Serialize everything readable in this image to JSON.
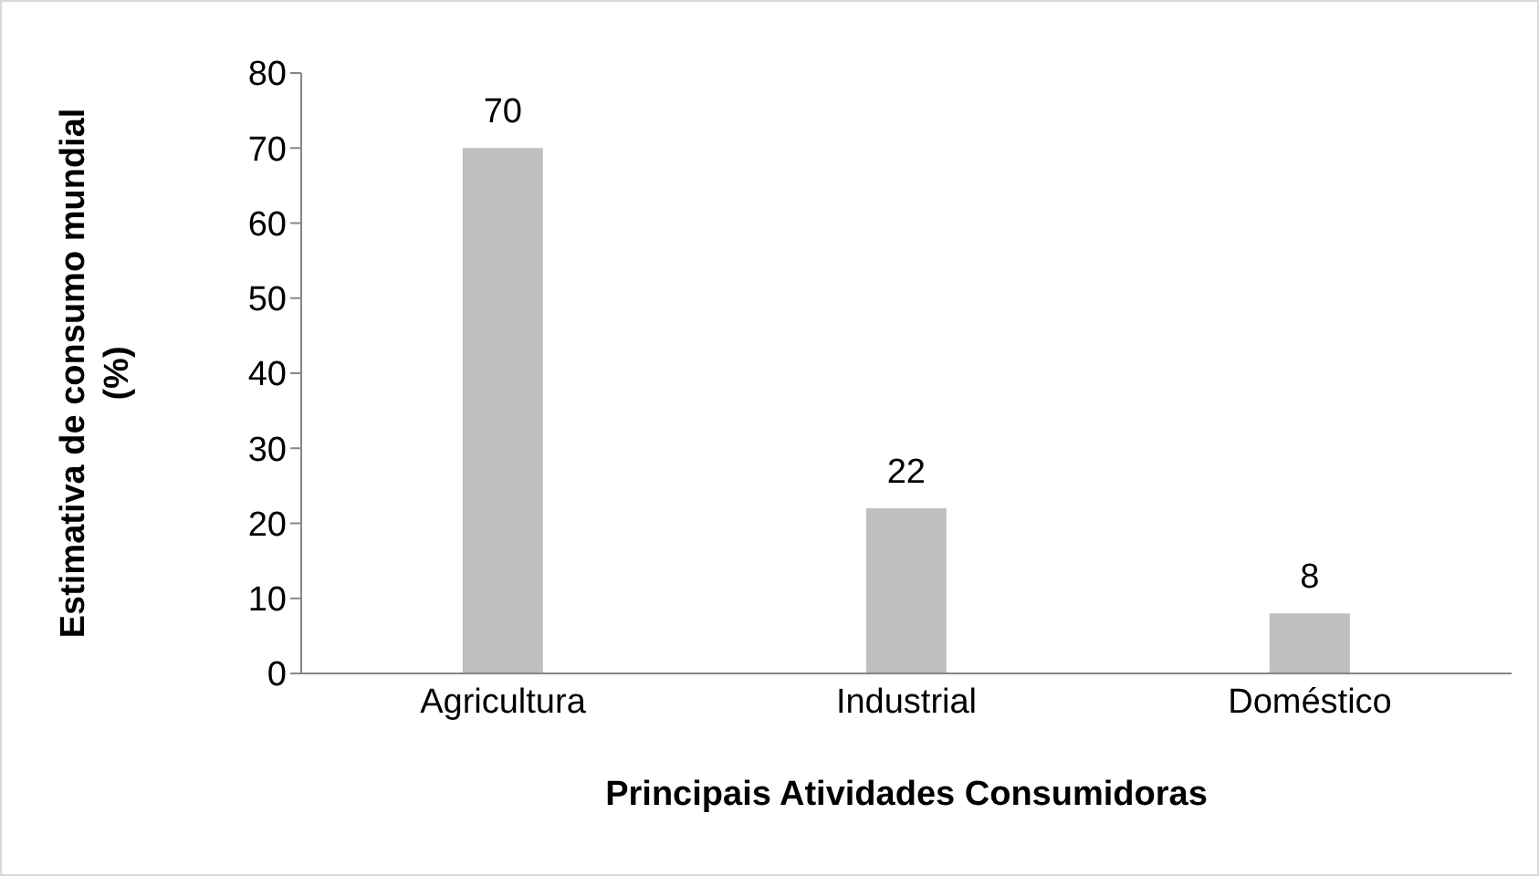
{
  "chart_data": {
    "type": "bar",
    "xlabel": "Principais Atividades Consumidoras",
    "ylabel": "Estimativa de consumo mundial (%)",
    "categories": [
      "Agricultura",
      "Industrial",
      "Doméstico"
    ],
    "values": [
      70,
      22,
      8
    ],
    "color": "#bfbfbf",
    "ylim": [
      0,
      80
    ],
    "yticks": [
      0,
      10,
      20,
      30,
      40,
      50,
      60,
      70,
      80
    ],
    "grid": false,
    "legend": false,
    "data_labels": true
  }
}
